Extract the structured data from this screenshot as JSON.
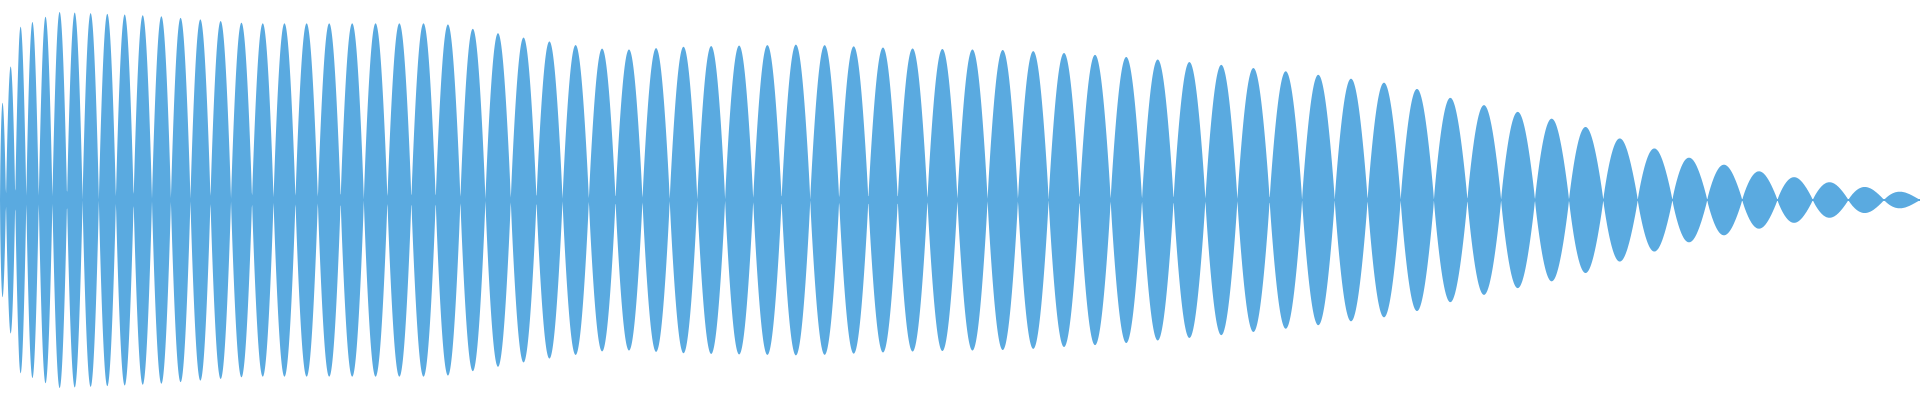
{
  "waveform": {
    "color": "#5aaae0",
    "background": "#ffffff",
    "envelope": [
      {
        "t": 0.0,
        "a": 0.45
      },
      {
        "t": 0.01,
        "a": 0.9
      },
      {
        "t": 0.03,
        "a": 0.98
      },
      {
        "t": 0.08,
        "a": 0.96
      },
      {
        "t": 0.13,
        "a": 0.92
      },
      {
        "t": 0.23,
        "a": 0.92
      },
      {
        "t": 0.27,
        "a": 0.85
      },
      {
        "t": 0.29,
        "a": 0.82
      },
      {
        "t": 0.32,
        "a": 0.78
      },
      {
        "t": 0.36,
        "a": 0.8
      },
      {
        "t": 0.42,
        "a": 0.81
      },
      {
        "t": 0.47,
        "a": 0.79
      },
      {
        "t": 0.53,
        "a": 0.78
      },
      {
        "t": 0.58,
        "a": 0.75
      },
      {
        "t": 0.63,
        "a": 0.71
      },
      {
        "t": 0.68,
        "a": 0.66
      },
      {
        "t": 0.73,
        "a": 0.6
      },
      {
        "t": 0.76,
        "a": 0.52
      },
      {
        "t": 0.79,
        "a": 0.46
      },
      {
        "t": 0.82,
        "a": 0.4
      },
      {
        "t": 0.85,
        "a": 0.3
      },
      {
        "t": 0.88,
        "a": 0.22
      },
      {
        "t": 0.91,
        "a": 0.16
      },
      {
        "t": 0.94,
        "a": 0.11
      },
      {
        "t": 0.97,
        "a": 0.07
      },
      {
        "t": 1.0,
        "a": 0.03
      }
    ],
    "cycles": 72,
    "chirp": 1.35
  }
}
